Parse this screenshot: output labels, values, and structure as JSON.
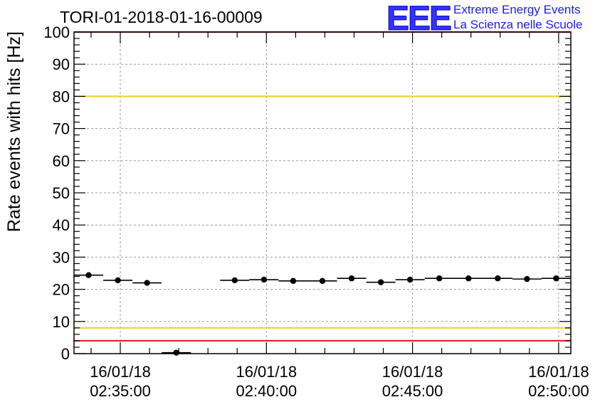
{
  "chart_data": {
    "type": "scatter",
    "title": "TORI-01-2018-01-16-00009",
    "xlabel": "",
    "ylabel": "Rate events with hits [Hz]",
    "ylim": [
      0,
      100
    ],
    "xlim": [
      "16/01/18 02:33:25",
      "16/01/18 02:50:25"
    ],
    "yticks": [
      0,
      10,
      20,
      30,
      40,
      50,
      60,
      70,
      80,
      90,
      100
    ],
    "xticks": [
      {
        "date": "16/01/18",
        "time": "02:35:00"
      },
      {
        "date": "16/01/18",
        "time": "02:40:00"
      },
      {
        "date": "16/01/18",
        "time": "02:45:00"
      },
      {
        "date": "16/01/18",
        "time": "02:50:00"
      }
    ],
    "grid": true,
    "points": [
      {
        "x": "02:33:55",
        "y": 24.4
      },
      {
        "x": "02:34:55",
        "y": 22.8
      },
      {
        "x": "02:35:55",
        "y": 22.0
      },
      {
        "x": "02:36:55",
        "y": 0.3
      },
      {
        "x": "02:38:55",
        "y": 22.8
      },
      {
        "x": "02:39:55",
        "y": 23.0
      },
      {
        "x": "02:40:55",
        "y": 22.6
      },
      {
        "x": "02:41:55",
        "y": 22.6
      },
      {
        "x": "02:42:55",
        "y": 23.4
      },
      {
        "x": "02:43:55",
        "y": 22.2
      },
      {
        "x": "02:44:55",
        "y": 23.0
      },
      {
        "x": "02:45:55",
        "y": 23.4
      },
      {
        "x": "02:46:55",
        "y": 23.4
      },
      {
        "x": "02:47:55",
        "y": 23.4
      },
      {
        "x": "02:48:55",
        "y": 23.2
      },
      {
        "x": "02:49:55",
        "y": 23.4
      }
    ],
    "point_bin_width_seconds": 60,
    "reference_lines": [
      {
        "y": 4,
        "color": "#ee1111"
      },
      {
        "y": 8,
        "color": "#f0d020"
      },
      {
        "y": 80,
        "color": "#f0d020"
      },
      {
        "y": 100,
        "color": "#ee1111"
      }
    ],
    "marker_color": "#000000"
  },
  "logo": {
    "mark": "EEE",
    "line1": "Extreme Energy Events",
    "line2": "La Scienza nelle Scuole",
    "color": "#1a1aff"
  }
}
